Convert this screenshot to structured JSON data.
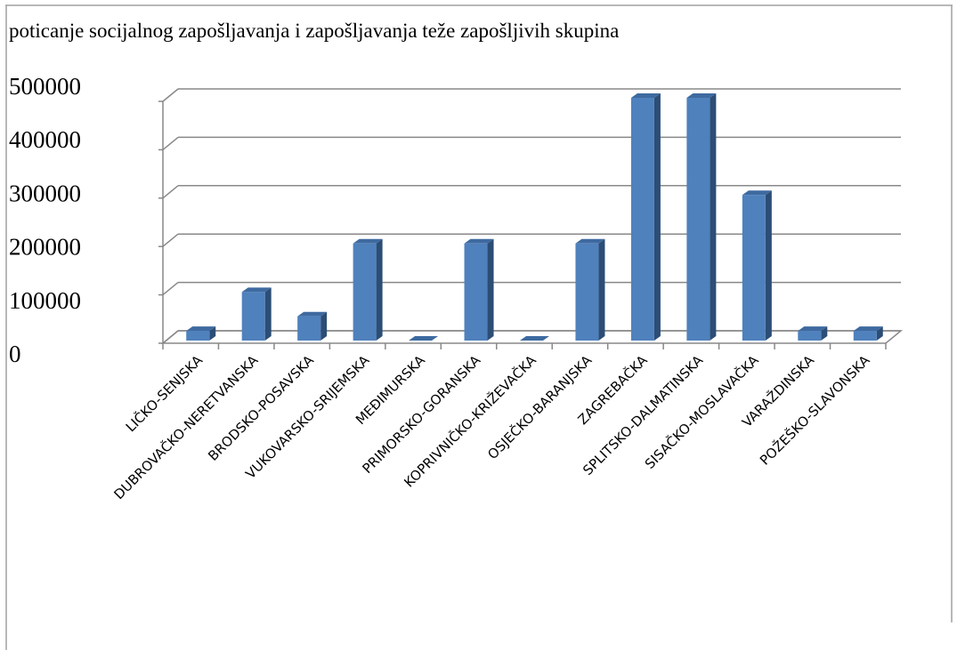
{
  "chart_data": {
    "type": "bar",
    "title": "poticanje socijalnog zapošljavanja i zapošljavanja teže zapošljivih skupina",
    "categories": [
      "LIČKO-SENJSKA",
      "DUBROVAČKO-NERETVANSKA",
      "BRODSKO-POSAVSKA",
      "VUKOVARSKO-SRIJEMSKA",
      "MEĐIMURSKA",
      "PRIMORSKO-GORANSKA",
      "KOPRIVNIČKO-KRIŽEVAČKA",
      "OSJEČKO-BARANJSKA",
      "ZAGREBAČKA",
      "SPLITSKO-DALMATINSKA",
      "SISAČKO-MOSLAVAČKA",
      "VARAŽDINSKA",
      "POŽEŠKO-SLAVONSKA"
    ],
    "values": [
      20000,
      100000,
      50000,
      200000,
      0,
      200000,
      0,
      200000,
      500000,
      500000,
      300000,
      20000,
      20000
    ],
    "color": "#4f81bd",
    "ylim": [
      0,
      500000
    ],
    "yticks": [
      0,
      100000,
      200000,
      300000,
      400000,
      500000
    ],
    "grid": true
  }
}
